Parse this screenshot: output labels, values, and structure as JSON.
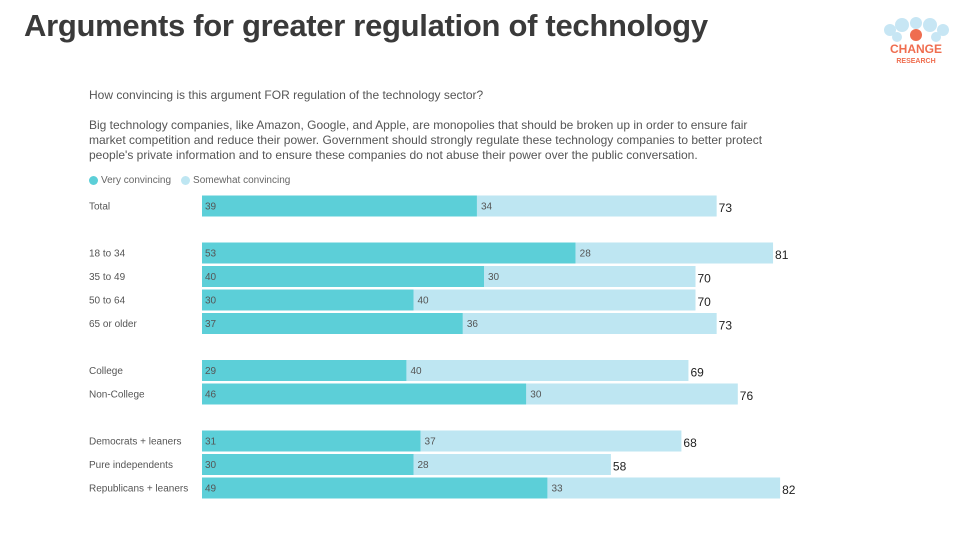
{
  "page_title": "Arguments for greater regulation of technology",
  "logo": {
    "line1": "CHANGE",
    "line2": "RESEARCH"
  },
  "question": "How convincing is this argument FOR regulation of the technology sector?",
  "statement": "Big technology companies, like Amazon, Google, and Apple, are monopolies that should be broken up in order to ensure fair market competition and reduce their power. Government should strongly regulate these technology companies to better protect people's private information and to ensure these companies do not abuse their power over the public conversation.",
  "colors": {
    "very": "#5ccfd8",
    "somewhat": "#bee6f2"
  },
  "chart_data": {
    "type": "bar",
    "orientation": "horizontal",
    "stacked": true,
    "series_names": [
      "Very convincing",
      "Somewhat convincing"
    ],
    "groups": [
      {
        "rows": [
          {
            "label": "Total",
            "very": 39,
            "somewhat": 34,
            "total": 73
          }
        ]
      },
      {
        "rows": [
          {
            "label": "18 to 34",
            "very": 53,
            "somewhat": 28,
            "total": 81
          },
          {
            "label": "35 to 49",
            "very": 40,
            "somewhat": 30,
            "total": 70
          },
          {
            "label": "50 to 64",
            "very": 30,
            "somewhat": 40,
            "total": 70
          },
          {
            "label": "65 or older",
            "very": 37,
            "somewhat": 36,
            "total": 73
          }
        ]
      },
      {
        "rows": [
          {
            "label": "College",
            "very": 29,
            "somewhat": 40,
            "total": 69
          },
          {
            "label": "Non-College",
            "very": 46,
            "somewhat": 30,
            "total": 76
          }
        ]
      },
      {
        "rows": [
          {
            "label": "Democrats + leaners",
            "very": 31,
            "somewhat": 37,
            "total": 68
          },
          {
            "label": "Pure independents",
            "very": 30,
            "somewhat": 28,
            "total": 58
          },
          {
            "label": "Republicans + leaners",
            "very": 49,
            "somewhat": 33,
            "total": 82
          }
        ]
      }
    ]
  }
}
